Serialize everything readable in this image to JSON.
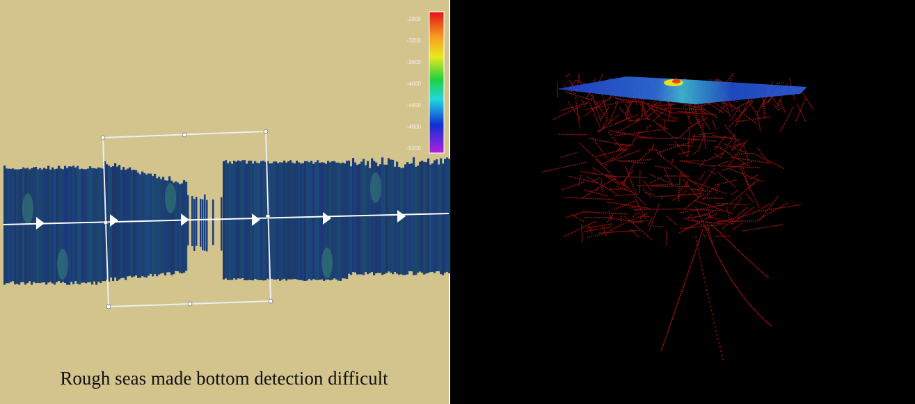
{
  "left_panel": {
    "colorbar": {
      "ticks": [
        -2800,
        -3200,
        -3600,
        -4000,
        -4400,
        -4800,
        -5200
      ]
    },
    "caption": "Rough seas made bottom detection difficult"
  }
}
